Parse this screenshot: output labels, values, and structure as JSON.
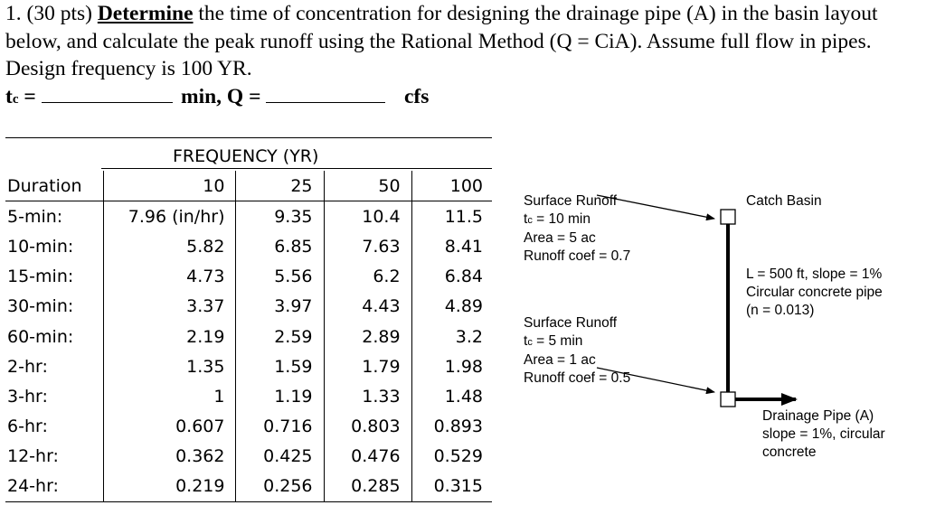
{
  "problem": {
    "number": "1. (30 pts)",
    "verb": "Determine",
    "text": "the time of concentration for designing the drainage pipe (A) in the basin layout below, and calculate the peak runoff using the Rational Method (Q = CiA). Assume full flow in pipes. Design frequency is 100 YR."
  },
  "answers": {
    "tc_label": "tc =",
    "q_label": "min, Q =",
    "unit": "cfs"
  },
  "table": {
    "title": "FREQUENCY (YR)",
    "duration_header": "Duration",
    "frequencies": [
      "10",
      "25",
      "50",
      "100"
    ],
    "rows": [
      {
        "duration": "5-min:",
        "values": [
          "7.96 (in/hr)",
          "9.35",
          "10.4",
          "11.5"
        ]
      },
      {
        "duration": "10-min:",
        "values": [
          "5.82",
          "6.85",
          "7.63",
          "8.41"
        ]
      },
      {
        "duration": "15-min:",
        "values": [
          "4.73",
          "5.56",
          "6.2",
          "6.84"
        ]
      },
      {
        "duration": "30-min:",
        "values": [
          "3.37",
          "3.97",
          "4.43",
          "4.89"
        ]
      },
      {
        "duration": "60-min:",
        "values": [
          "2.19",
          "2.59",
          "2.89",
          "3.2"
        ]
      },
      {
        "duration": "2-hr:",
        "values": [
          "1.35",
          "1.59",
          "1.79",
          "1.98"
        ]
      },
      {
        "duration": "3-hr:",
        "values": [
          "1",
          "1.19",
          "1.33",
          "1.48"
        ]
      },
      {
        "duration": "6-hr:",
        "values": [
          "0.607",
          "0.716",
          "0.803",
          "0.893"
        ]
      },
      {
        "duration": "12-hr:",
        "values": [
          "0.362",
          "0.425",
          "0.476",
          "0.529"
        ]
      },
      {
        "duration": "24-hr:",
        "values": [
          "0.219",
          "0.256",
          "0.285",
          "0.315"
        ]
      }
    ]
  },
  "diagram": {
    "runoff1": [
      "Surface Runoff",
      "tc = 10 min",
      "Area = 5 ac",
      "Runoff coef = 0.7"
    ],
    "catch_basin": "Catch Basin",
    "pipe": [
      "L = 500 ft, slope = 1%",
      "Circular concrete pipe",
      "(n = 0.013)"
    ],
    "runoff2": [
      "Surface Runoff",
      "tc = 5 min",
      "Area = 1 ac",
      "Runoff coef = 0.5"
    ],
    "drainage_pipe": [
      "Drainage Pipe (A)",
      "slope = 1%, circular",
      "concrete"
    ]
  }
}
